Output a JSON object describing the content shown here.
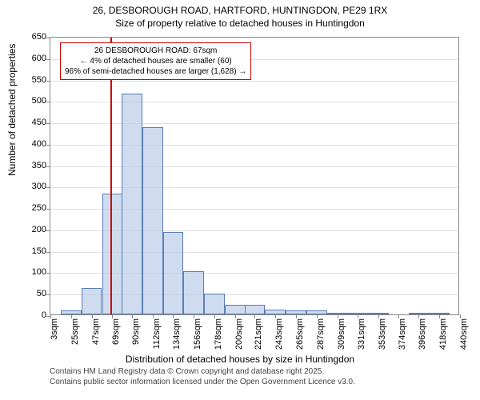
{
  "chart": {
    "type": "histogram",
    "title_line1": "26, DESBOROUGH ROAD, HARTFORD, HUNTINGDON, PE29 1RX",
    "title_line2": "Size of property relative to detached houses in Huntingdon",
    "x_axis_label": "Distribution of detached houses by size in Huntingdon",
    "y_axis_label": "Number of detached properties",
    "background_color": "#ffffff",
    "grid_color": "#e0e0e0",
    "border_color": "#888888",
    "bar_fill": "rgba(186, 205, 232, 0.7)",
    "bar_stroke": "#5a7db8",
    "marker_color": "#cc0000",
    "y_ticks": [
      0,
      50,
      100,
      150,
      200,
      250,
      300,
      350,
      400,
      450,
      500,
      550,
      600,
      650
    ],
    "ylim": [
      0,
      650
    ],
    "x_ticks": [
      "3sqm",
      "25sqm",
      "47sqm",
      "69sqm",
      "90sqm",
      "112sqm",
      "134sqm",
      "156sqm",
      "178sqm",
      "200sqm",
      "221sqm",
      "243sqm",
      "265sqm",
      "287sqm",
      "309sqm",
      "331sqm",
      "353sqm",
      "374sqm",
      "396sqm",
      "418sqm",
      "440sqm"
    ],
    "x_tick_values": [
      3,
      25,
      47,
      69,
      90,
      112,
      134,
      156,
      178,
      200,
      221,
      243,
      265,
      287,
      309,
      331,
      353,
      374,
      396,
      418,
      440
    ],
    "xlim": [
      3,
      440
    ],
    "bar_width": 21.85,
    "bars": [
      {
        "x": 25,
        "value": 10
      },
      {
        "x": 47,
        "value": 62
      },
      {
        "x": 69,
        "value": 282
      },
      {
        "x": 90,
        "value": 515
      },
      {
        "x": 112,
        "value": 438
      },
      {
        "x": 134,
        "value": 192
      },
      {
        "x": 156,
        "value": 100
      },
      {
        "x": 178,
        "value": 48
      },
      {
        "x": 200,
        "value": 22
      },
      {
        "x": 221,
        "value": 22
      },
      {
        "x": 243,
        "value": 12
      },
      {
        "x": 265,
        "value": 10
      },
      {
        "x": 287,
        "value": 10
      },
      {
        "x": 309,
        "value": 3
      },
      {
        "x": 331,
        "value": 3
      },
      {
        "x": 353,
        "value": 2
      },
      {
        "x": 374,
        "value": 0
      },
      {
        "x": 396,
        "value": 2
      },
      {
        "x": 418,
        "value": 2
      },
      {
        "x": 440,
        "value": 0
      }
    ],
    "marker_value": 67,
    "annotation": {
      "line1": "26 DESBOROUGH ROAD: 67sqm",
      "line2": "← 4% of detached houses are smaller (60)",
      "line3": "96% of semi-detached houses are larger (1,628) →"
    },
    "attribution_line1": "Contains HM Land Registry data © Crown copyright and database right 2025.",
    "attribution_line2": "Contains public sector information licensed under the Open Government Licence v3.0.",
    "title_fontsize": 12,
    "axis_label_fontsize": 12,
    "tick_fontsize": 11,
    "annotation_fontsize": 10,
    "attribution_fontsize": 10
  }
}
